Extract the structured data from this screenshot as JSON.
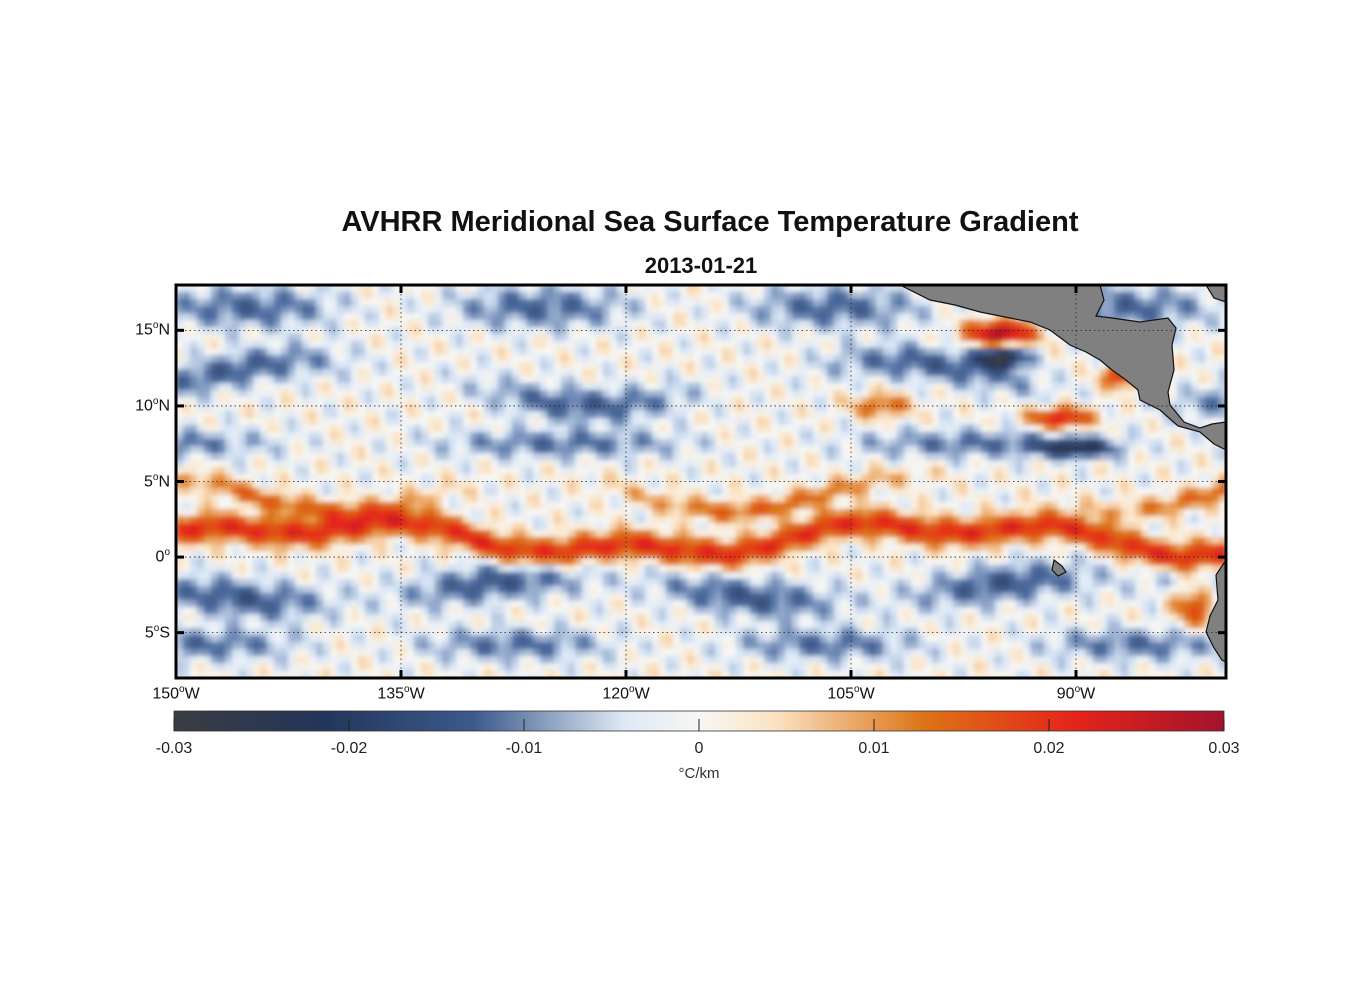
{
  "title": "AVHRR Meridional Sea Surface Temperature Gradient",
  "subtitle": "2013-01-21",
  "chart_data": {
    "type": "heatmap",
    "title": "AVHRR Meridional Sea Surface Temperature Gradient",
    "subtitle": "2013-01-21",
    "x_range": [
      -150,
      -80
    ],
    "y_range": [
      -8,
      18
    ],
    "grid": true,
    "lat_ticks": [
      {
        "deg": "15",
        "hemi": "N",
        "value": 15
      },
      {
        "deg": "10",
        "hemi": "N",
        "value": 10
      },
      {
        "deg": "5",
        "hemi": "N",
        "value": 5
      },
      {
        "deg": "0",
        "hemi": "",
        "value": 0
      },
      {
        "deg": "5",
        "hemi": "S",
        "value": -5
      }
    ],
    "lon_ticks": [
      {
        "deg": "150",
        "hemi": "W",
        "value": -150
      },
      {
        "deg": "135",
        "hemi": "W",
        "value": -135
      },
      {
        "deg": "120",
        "hemi": "W",
        "value": -120
      },
      {
        "deg": "105",
        "hemi": "W",
        "value": -105
      },
      {
        "deg": "90",
        "hemi": "W",
        "value": -90
      }
    ],
    "colorbar": {
      "range": [
        -0.03,
        0.03
      ],
      "ticks": [
        "-0.03",
        "-0.02",
        "-0.01",
        "0",
        "0.01",
        "0.02",
        "0.03"
      ],
      "unit": "°C/km",
      "colors": [
        "#3a3c42",
        "#23355a",
        "#3c5a8c",
        "#dfe9f5",
        "#fbe3c4",
        "#dc7416",
        "#e5241a",
        "#a3132c"
      ]
    },
    "land_color": "#808080"
  }
}
